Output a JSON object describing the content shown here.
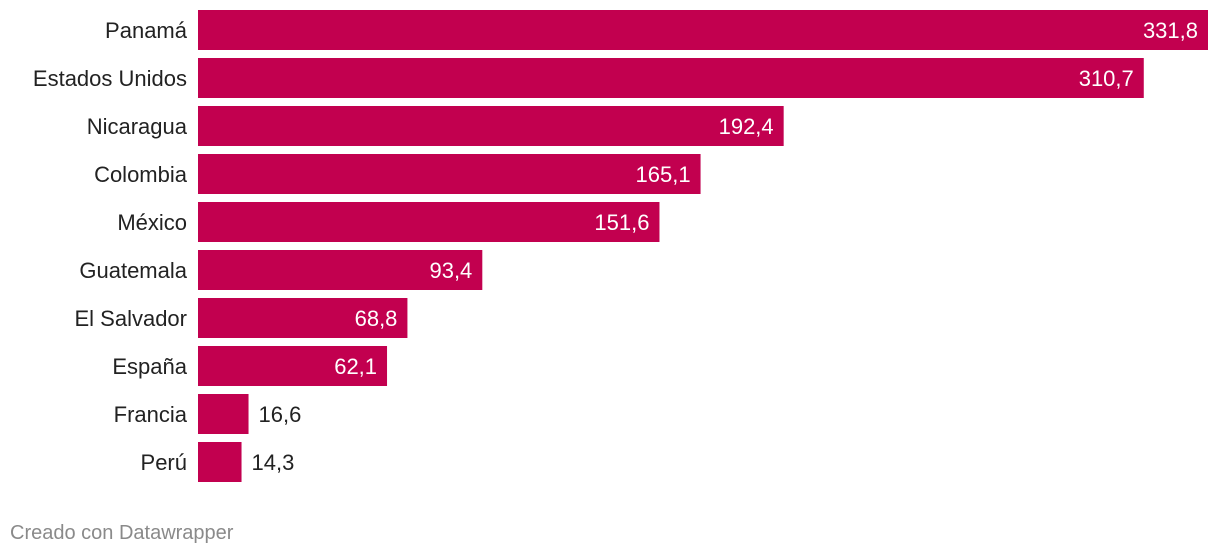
{
  "chart_data": {
    "type": "bar",
    "orientation": "horizontal",
    "categories": [
      "Panamá",
      "Estados Unidos",
      "Nicaragua",
      "Colombia",
      "México",
      "Guatemala",
      "El Salvador",
      "España",
      "Francia",
      "Perú"
    ],
    "values": [
      331.8,
      310.7,
      192.4,
      165.1,
      151.6,
      93.4,
      68.8,
      62.1,
      16.6,
      14.3
    ],
    "value_labels": [
      "331,8",
      "310,7",
      "192,4",
      "165,1",
      "151,6",
      "93,4",
      "68,8",
      "62,1",
      "16,6",
      "14,3"
    ],
    "xlim": [
      0,
      331.8
    ],
    "grid": false,
    "legend": "none",
    "bar_color": "#c2004f"
  },
  "footer": {
    "credit": "Creado con Datawrapper"
  }
}
